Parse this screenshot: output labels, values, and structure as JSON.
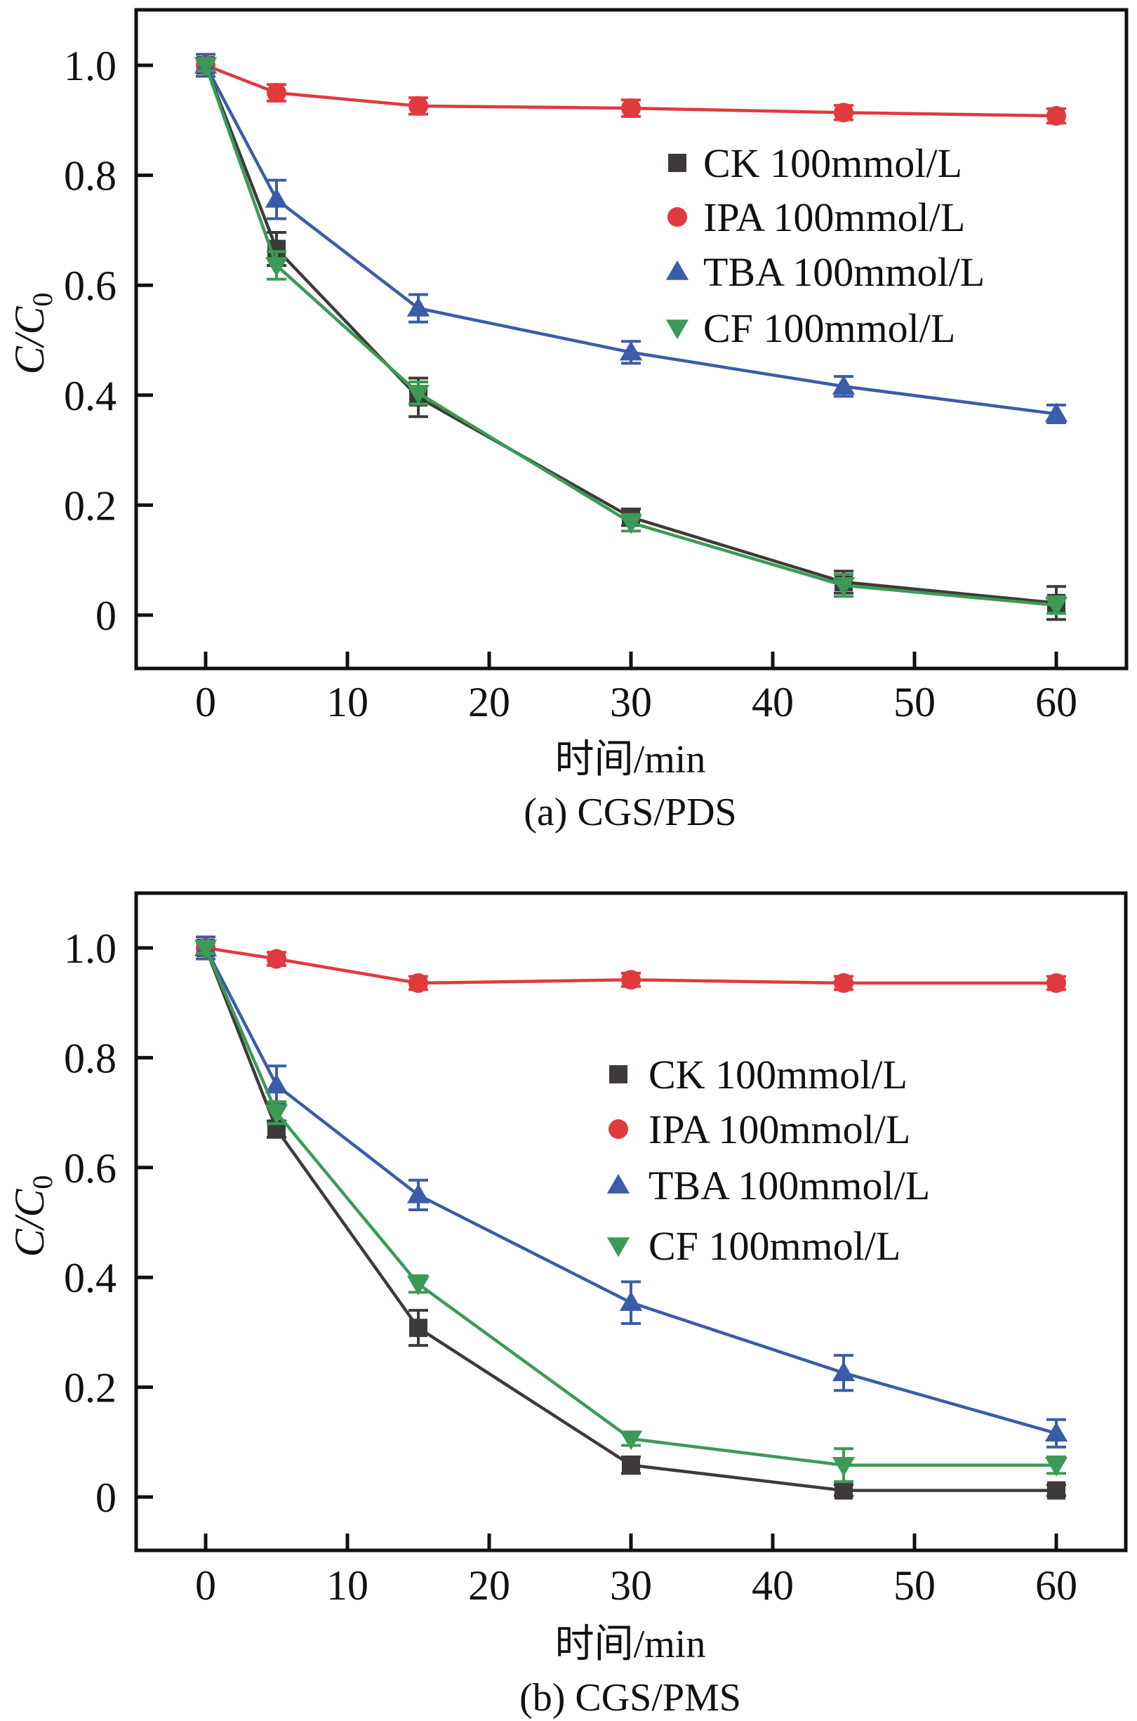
{
  "figure": {
    "panels": [
      "a",
      "b"
    ]
  },
  "chart_data": [
    {
      "type": "line",
      "title": "(a) CGS/PDS",
      "xlabel": "时间/min",
      "ylabel_main": "C/C",
      "ylabel_sub": "0",
      "xlim": [
        -5,
        65
      ],
      "ylim": [
        -0.1,
        1.1
      ],
      "xticks": [
        0,
        10,
        20,
        30,
        40,
        50,
        60
      ],
      "xtick_labels": [
        "0",
        "10",
        "20",
        "30",
        "40",
        "50",
        "60"
      ],
      "yticks": [
        0,
        0.2,
        0.4,
        0.6,
        0.8,
        1.0
      ],
      "ytick_labels": [
        "0",
        "0.2",
        "0.4",
        "0.6",
        "0.8",
        "1.0"
      ],
      "grid": false,
      "legend_position": "upper-right",
      "x": [
        0,
        5,
        15,
        30,
        45,
        60
      ],
      "series": [
        {
          "name": "CK 100mmol/L",
          "marker": "square",
          "color": "#3e3a3a",
          "values": [
            1.0,
            0.666,
            0.396,
            0.178,
            0.06,
            0.022
          ],
          "errors": [
            0.01,
            0.03,
            0.035,
            0.015,
            0.02,
            0.03
          ]
        },
        {
          "name": "IPA 100mmol/L",
          "marker": "circle",
          "color": "#e03a3e",
          "values": [
            1.0,
            0.95,
            0.926,
            0.922,
            0.914,
            0.908
          ],
          "errors": [
            0.01,
            0.015,
            0.015,
            0.015,
            0.013,
            0.013
          ]
        },
        {
          "name": "TBA 100mmol/L",
          "marker": "triangle-up",
          "color": "#3b5ca8",
          "values": [
            1.0,
            0.756,
            0.558,
            0.478,
            0.416,
            0.366
          ],
          "errors": [
            0.02,
            0.035,
            0.025,
            0.02,
            0.018,
            0.016
          ]
        },
        {
          "name": "CF 100mmol/L",
          "marker": "triangle-down",
          "color": "#3b9a57",
          "values": [
            1.0,
            0.636,
            0.404,
            0.168,
            0.054,
            0.018
          ],
          "errors": [
            0.01,
            0.025,
            0.02,
            0.015,
            0.02,
            0.015
          ]
        }
      ]
    },
    {
      "type": "line",
      "title": "(b) CGS/PMS",
      "xlabel": "时间/min",
      "ylabel_main": "C/C",
      "ylabel_sub": "0",
      "xlim": [
        -5,
        65
      ],
      "ylim": [
        -0.1,
        1.1
      ],
      "xticks": [
        0,
        10,
        20,
        30,
        40,
        50,
        60
      ],
      "xtick_labels": [
        "0",
        "10",
        "20",
        "30",
        "40",
        "50",
        "60"
      ],
      "yticks": [
        0,
        0.2,
        0.4,
        0.6,
        0.8,
        1.0
      ],
      "ytick_labels": [
        "0",
        "0.2",
        "0.4",
        "0.6",
        "0.8",
        "1.0"
      ],
      "grid": false,
      "legend_position": "center-right",
      "x": [
        0,
        5,
        15,
        30,
        45,
        60
      ],
      "series": [
        {
          "name": "CK 100mmol/L",
          "marker": "square",
          "color": "#3e3a3a",
          "values": [
            1.0,
            0.67,
            0.308,
            0.058,
            0.012,
            0.012
          ],
          "errors": [
            0.01,
            0.015,
            0.032,
            0.015,
            0.01,
            0.01
          ]
        },
        {
          "name": "IPA 100mmol/L",
          "marker": "circle",
          "color": "#e03a3e",
          "values": [
            1.0,
            0.98,
            0.936,
            0.942,
            0.936,
            0.936
          ],
          "errors": [
            0.01,
            0.012,
            0.012,
            0.012,
            0.012,
            0.012
          ]
        },
        {
          "name": "TBA 100mmol/L",
          "marker": "triangle-up",
          "color": "#3b5ca8",
          "values": [
            1.0,
            0.75,
            0.55,
            0.354,
            0.226,
            0.116
          ],
          "errors": [
            0.02,
            0.035,
            0.027,
            0.038,
            0.032,
            0.025
          ]
        },
        {
          "name": "CF 100mmol/L",
          "marker": "triangle-down",
          "color": "#3b9a57",
          "values": [
            1.0,
            0.7,
            0.388,
            0.106,
            0.058,
            0.058
          ],
          "errors": [
            0.01,
            0.02,
            0.015,
            0.012,
            0.03,
            0.015
          ]
        }
      ]
    }
  ]
}
